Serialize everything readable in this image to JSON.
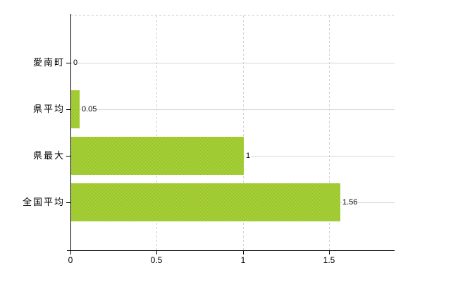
{
  "chart_data": {
    "type": "bar",
    "orientation": "horizontal",
    "title": "",
    "categories": [
      "愛南町",
      "県平均",
      "県最大",
      "全国平均"
    ],
    "values": [
      0,
      0.05,
      1,
      1.56
    ],
    "value_labels": [
      "0",
      "0.05",
      "1",
      "1.56"
    ],
    "x_tick_labels": [
      "0",
      "0.5",
      "1",
      "1.5"
    ],
    "x_tick_values": [
      0,
      0.5,
      1,
      1.5
    ],
    "xlim": [
      0,
      1.878
    ],
    "legend": "none",
    "grid": {
      "horizontal_solid": true,
      "vertical_dashed": true,
      "top_border_dashed": true
    },
    "colors": {
      "bar": "#9acd32",
      "bar_dither_light": "#b3d42c",
      "bar_dither_dark": "#8fc23a",
      "h_gridline": "#d0dad0",
      "v_gridline": "#d3cbd6",
      "top_border": "#cfc9cf",
      "axis": "#000000",
      "text": "#000000",
      "background": "#ffffff"
    }
  }
}
